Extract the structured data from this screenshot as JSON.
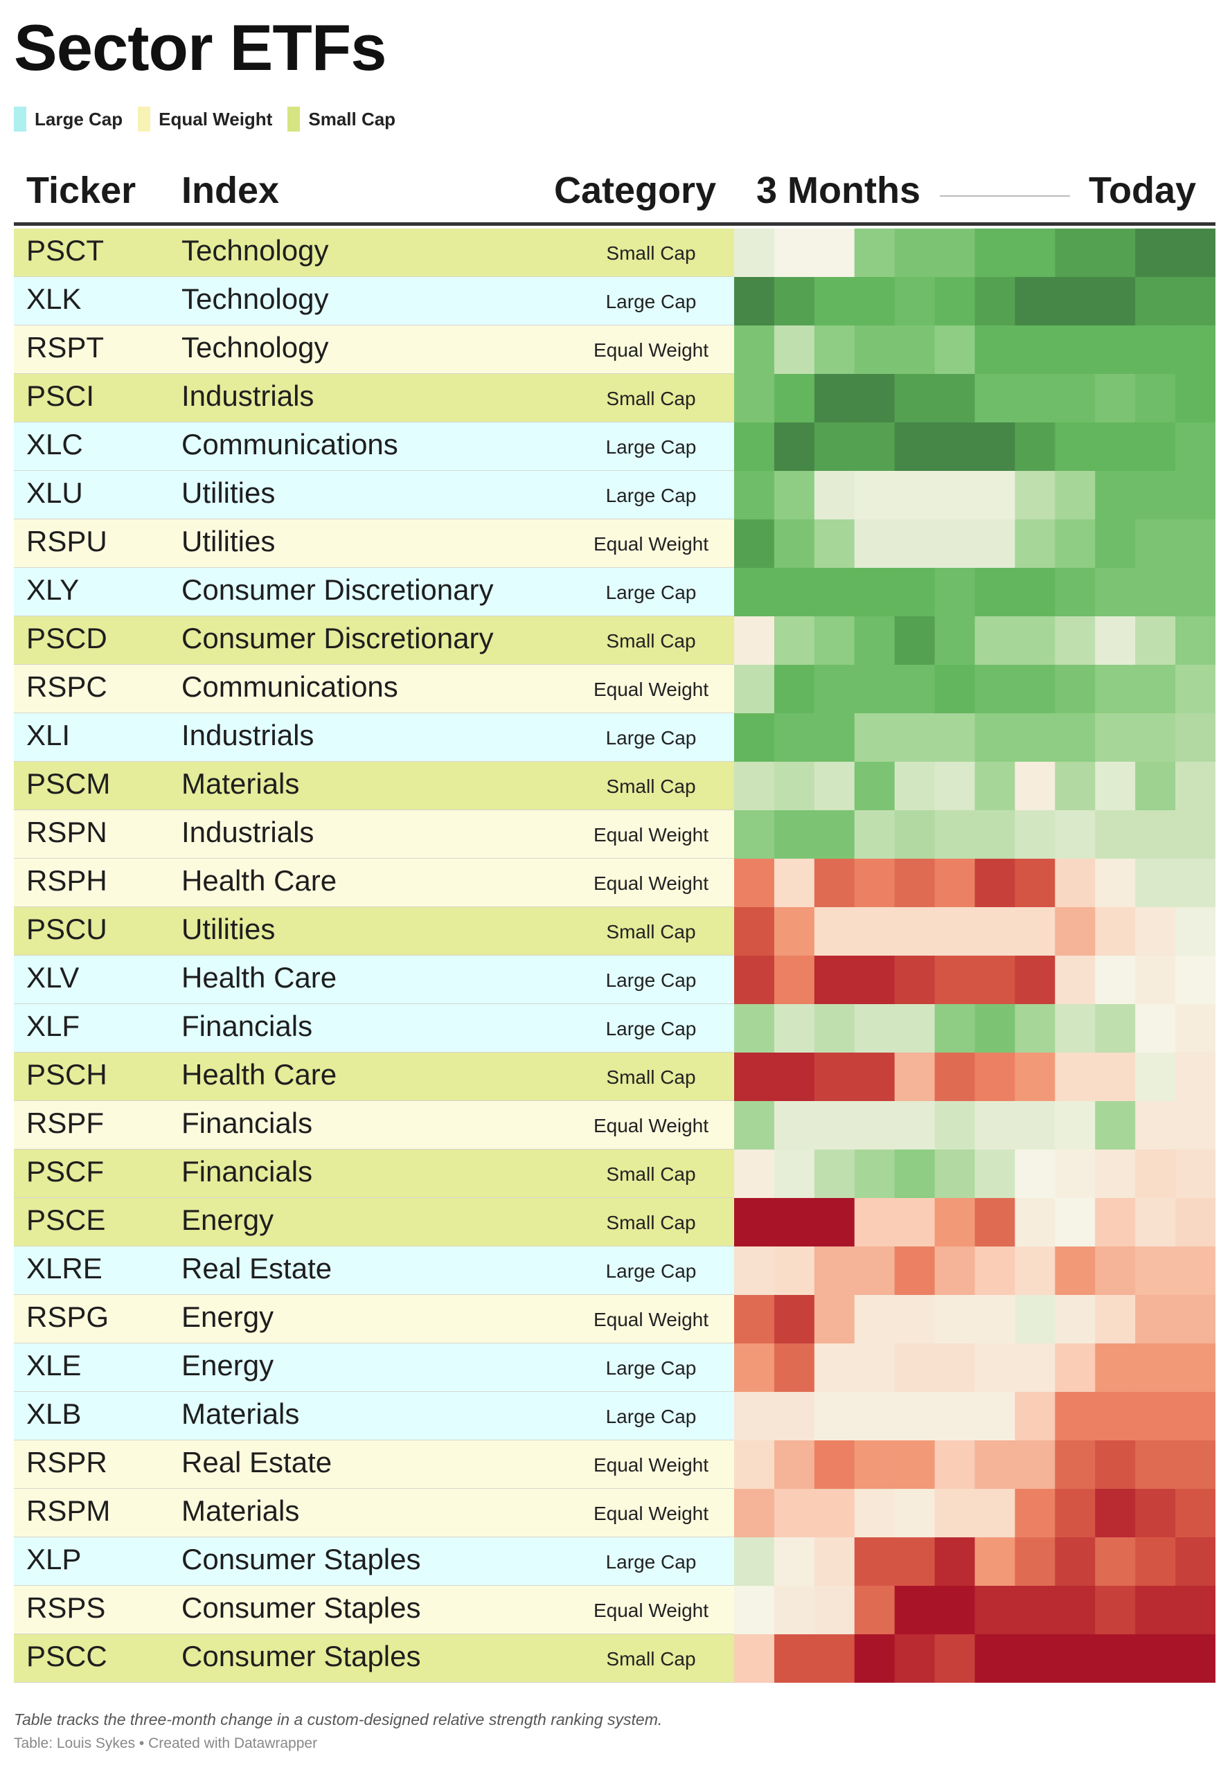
{
  "title": "Sector ETFs",
  "legend": [
    {
      "label": "Large Cap",
      "color": "#aeeff0"
    },
    {
      "label": "Equal Weight",
      "color": "#f8f2b4"
    },
    {
      "label": "Small Cap",
      "color": "#d6e482"
    }
  ],
  "category_backgrounds": {
    "Large Cap": "#e2feff",
    "Equal Weight": "#fdfbde",
    "Small Cap": "#e5ec9a"
  },
  "headers": {
    "ticker": "Ticker",
    "index": "Index",
    "category": "Category",
    "start": "3 Months",
    "end": "Today"
  },
  "chart_data": {
    "type": "heatmap",
    "title": "Sector ETFs",
    "x": [
      "3 Months",
      "",
      "",
      "",
      "",
      "",
      "",
      "",
      "",
      "",
      "",
      "Today"
    ],
    "value_meaning": "relative strength: green = strong, red = weak",
    "value_range": [
      -5,
      5
    ],
    "rows": [
      {
        "ticker": "PSCT",
        "index": "Technology",
        "category": "Small Cap",
        "values": [
          0.4,
          0,
          0,
          2.5,
          3,
          3,
          4,
          4,
          4.5,
          4.5,
          5,
          5
        ]
      },
      {
        "ticker": "XLK",
        "index": "Technology",
        "category": "Large Cap",
        "values": [
          5,
          4.5,
          4,
          4,
          3.5,
          4,
          4.5,
          5,
          5,
          5,
          4.5,
          4.5
        ]
      },
      {
        "ticker": "RSPT",
        "index": "Technology",
        "category": "Equal Weight",
        "values": [
          3,
          1.5,
          2.5,
          3,
          3,
          2.5,
          4,
          4,
          4,
          4,
          4,
          4
        ]
      },
      {
        "ticker": "PSCI",
        "index": "Industrials",
        "category": "Small Cap",
        "values": [
          3,
          4,
          5,
          5,
          4.5,
          4.5,
          3.5,
          3.5,
          3.5,
          3,
          3.5,
          4
        ]
      },
      {
        "ticker": "XLC",
        "index": "Communications",
        "category": "Large Cap",
        "values": [
          4,
          5,
          4.5,
          4.5,
          5,
          5,
          5,
          4.5,
          4,
          4,
          4,
          3.5
        ]
      },
      {
        "ticker": "XLU",
        "index": "Utilities",
        "category": "Large Cap",
        "values": [
          3.5,
          2.5,
          0.5,
          0.3,
          0.3,
          0.3,
          0.3,
          1.5,
          2,
          3.5,
          3.5,
          3.5
        ]
      },
      {
        "ticker": "RSPU",
        "index": "Utilities",
        "category": "Equal Weight",
        "values": [
          4.5,
          3,
          2,
          0.5,
          0.5,
          0.5,
          0.5,
          2,
          2.5,
          3.5,
          3,
          3
        ]
      },
      {
        "ticker": "XLY",
        "index": "Consumer Discretionary",
        "category": "Large Cap",
        "values": [
          4,
          4,
          4,
          4,
          4,
          3.5,
          4,
          4,
          3.5,
          3,
          3,
          3
        ]
      },
      {
        "ticker": "PSCD",
        "index": "Consumer Discretionary",
        "category": "Small Cap",
        "values": [
          -0.3,
          2,
          2.5,
          3.5,
          4.5,
          3.5,
          2,
          2,
          1.5,
          0.5,
          1.5,
          2.5
        ]
      },
      {
        "ticker": "RSPC",
        "index": "Communications",
        "category": "Equal Weight",
        "values": [
          1.5,
          4,
          3.5,
          3.5,
          3.5,
          4,
          3.5,
          3.5,
          3,
          2.5,
          2.5,
          2
        ]
      },
      {
        "ticker": "XLI",
        "index": "Industrials",
        "category": "Large Cap",
        "values": [
          4,
          3.5,
          3.5,
          2,
          2,
          2,
          2.5,
          2.5,
          2.5,
          2,
          2,
          1.8
        ]
      },
      {
        "ticker": "PSCM",
        "index": "Materials",
        "category": "Small Cap",
        "values": [
          1.2,
          1.5,
          1,
          3,
          1,
          0.8,
          2,
          -0.3,
          1.8,
          0.6,
          2.2,
          1.2
        ]
      },
      {
        "ticker": "RSPN",
        "index": "Industrials",
        "category": "Equal Weight",
        "values": [
          2.5,
          3,
          3,
          1.5,
          1.8,
          1.5,
          1.5,
          1,
          0.8,
          1.2,
          1.2,
          1.2
        ]
      },
      {
        "ticker": "RSPH",
        "index": "Health Care",
        "category": "Equal Weight",
        "values": [
          -3,
          -1,
          -3.5,
          -3,
          -3.5,
          -3,
          -4.5,
          -4,
          -1.2,
          -0.3,
          0.8,
          0.8
        ]
      },
      {
        "ticker": "PSCU",
        "index": "Utilities",
        "category": "Small Cap",
        "values": [
          -4,
          -2.5,
          -1,
          -1,
          -1,
          -1,
          -1,
          -1,
          -2,
          -1,
          -0.5,
          0.2
        ]
      },
      {
        "ticker": "XLV",
        "index": "Health Care",
        "category": "Large Cap",
        "values": [
          -4.5,
          -3,
          -5,
          -5,
          -4.5,
          -4,
          -4,
          -4.5,
          -0.8,
          0,
          -0.3,
          0
        ]
      },
      {
        "ticker": "XLF",
        "index": "Financials",
        "category": "Large Cap",
        "values": [
          2,
          1,
          1.5,
          1,
          1,
          2.5,
          3,
          2,
          1,
          1.5,
          0,
          -0.3
        ]
      },
      {
        "ticker": "PSCH",
        "index": "Health Care",
        "category": "Small Cap",
        "values": [
          -5,
          -5,
          -4.5,
          -4.5,
          -2,
          -3.5,
          -3,
          -2.5,
          -1,
          -1,
          0.3,
          -0.5
        ]
      },
      {
        "ticker": "RSPF",
        "index": "Financials",
        "category": "Equal Weight",
        "values": [
          2,
          0.5,
          0.5,
          0.5,
          0.5,
          1,
          0.5,
          0.5,
          0.3,
          2,
          -0.5,
          -0.5
        ]
      },
      {
        "ticker": "PSCF",
        "index": "Financials",
        "category": "Small Cap",
        "values": [
          -0.3,
          0.4,
          1.5,
          2,
          2.5,
          1.8,
          1,
          0,
          -0.2,
          -0.5,
          -1,
          -0.8
        ]
      },
      {
        "ticker": "PSCE",
        "index": "Energy",
        "category": "Small Cap",
        "values": [
          -5.5,
          -5.5,
          -5.5,
          -1.5,
          -1.5,
          -2.5,
          -3.5,
          -0.3,
          0,
          -1.5,
          -0.8,
          -1.2
        ]
      },
      {
        "ticker": "XLRE",
        "index": "Real Estate",
        "category": "Large Cap",
        "values": [
          -0.8,
          -1,
          -2,
          -2,
          -3,
          -2,
          -1.5,
          -1,
          -2.5,
          -2,
          -1.8,
          -1.8
        ]
      },
      {
        "ticker": "RSPG",
        "index": "Energy",
        "category": "Equal Weight",
        "values": [
          -3.5,
          -4.5,
          -2,
          -0.5,
          -0.5,
          -0.3,
          -0.3,
          0.4,
          -0.4,
          -1,
          -2,
          -2
        ]
      },
      {
        "ticker": "XLE",
        "index": "Energy",
        "category": "Large Cap",
        "values": [
          -2.5,
          -3.5,
          -0.5,
          -0.5,
          -0.8,
          -0.8,
          -0.5,
          -0.5,
          -1.5,
          -2.5,
          -2.5,
          -2.5
        ]
      },
      {
        "ticker": "XLB",
        "index": "Materials",
        "category": "Large Cap",
        "values": [
          -0.6,
          -0.6,
          -0.2,
          -0.2,
          -0.2,
          -0.2,
          -0.2,
          -1.5,
          -3,
          -3,
          -3,
          -3
        ]
      },
      {
        "ticker": "RSPR",
        "index": "Real Estate",
        "category": "Equal Weight",
        "values": [
          -1,
          -2,
          -3,
          -2.5,
          -2.5,
          -1.5,
          -2,
          -2,
          -3.5,
          -4,
          -3.5,
          -3.5
        ]
      },
      {
        "ticker": "RSPM",
        "index": "Materials",
        "category": "Equal Weight",
        "values": [
          -2,
          -1.5,
          -1.5,
          -0.5,
          -0.3,
          -1,
          -1,
          -3,
          -4,
          -5,
          -4.5,
          -4
        ]
      },
      {
        "ticker": "XLP",
        "index": "Consumer Staples",
        "category": "Large Cap",
        "values": [
          0.8,
          -0.2,
          -0.8,
          -4,
          -4,
          -5,
          -2.5,
          -3.5,
          -4.5,
          -3.5,
          -4,
          -4.5
        ]
      },
      {
        "ticker": "RSPS",
        "index": "Consumer Staples",
        "category": "Equal Weight",
        "values": [
          0,
          -0.4,
          -0.6,
          -3.5,
          -5.5,
          -5.5,
          -5,
          -5,
          -5,
          -4.5,
          -5,
          -5
        ]
      },
      {
        "ticker": "PSCC",
        "index": "Consumer Staples",
        "category": "Small Cap",
        "values": [
          -1.5,
          -4,
          -4,
          -5.5,
          -5,
          -4.5,
          -5.5,
          -5.5,
          -5.5,
          -5.5,
          -5.5,
          -5.5
        ]
      }
    ]
  },
  "footer": {
    "note": "Table tracks the three-month change in a custom-designed relative strength ranking system.",
    "credit": "Table: Louis Sykes • Created with Datawrapper"
  }
}
